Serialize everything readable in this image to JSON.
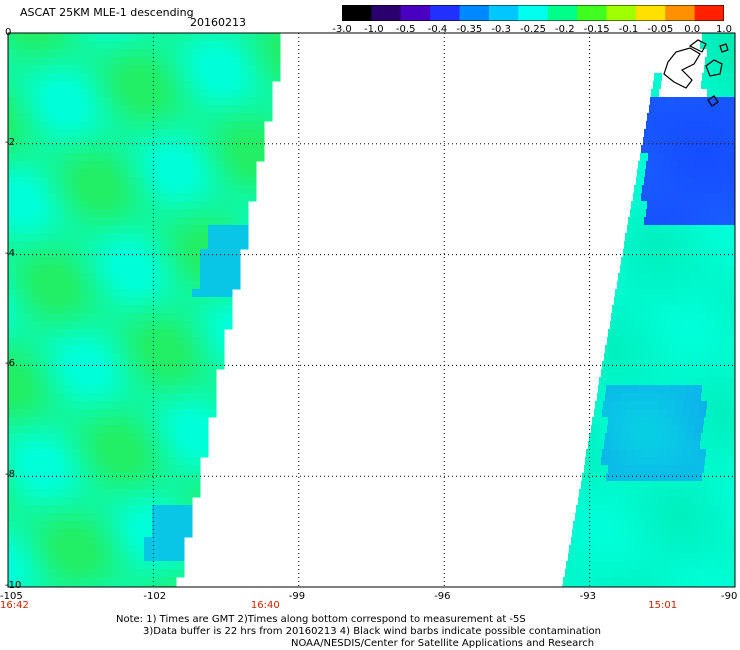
{
  "header": {
    "title": "ASCAT 25KM MLE-1 descending",
    "date": "20160213"
  },
  "colorbar": {
    "ticks": [
      "-3.0",
      "-1.0",
      "-0.5",
      "-0.4",
      "-0.35",
      "-0.3",
      "-0.25",
      "-0.2",
      "-0.15",
      "-0.1",
      "-0.05",
      "0.0",
      "1.0"
    ],
    "colors": [
      "#000000",
      "#2a006e",
      "#4a00c0",
      "#2030ff",
      "#0088ff",
      "#00c8ff",
      "#00ffee",
      "#00ff88",
      "#40ff20",
      "#a0ff00",
      "#ffe000",
      "#ff9000",
      "#ff2000"
    ]
  },
  "map": {
    "lon_ticks": [
      "-105",
      "-102",
      "-99",
      "-96",
      "-93",
      "-90"
    ],
    "lat_ticks": [
      "0",
      "-2",
      "-4",
      "-6",
      "-8",
      "-10"
    ],
    "lon_range": [
      -105,
      -90
    ],
    "lat_range": [
      -10,
      0
    ],
    "grid": true,
    "times": [
      {
        "label": "16:42",
        "lon": -105
      },
      {
        "label": "16:40",
        "lon": -99.7
      },
      {
        "label": "15:01",
        "lon": -91.5
      }
    ],
    "swath_colors": {
      "green": "#22ee66",
      "cyan": "#00ffd8",
      "blue": "#1a5cff",
      "mid": "#00e8b0"
    }
  },
  "notes": {
    "line1": "Note: 1) Times are GMT 2)Times along bottom correspond to measurement at -5S",
    "line2": "3)Data buffer is 22 hrs from 20160213 4) Black wind barbs indicate possible contamination",
    "line3": "NOAA/NESDIS/Center for Satellite Applications and Research"
  }
}
